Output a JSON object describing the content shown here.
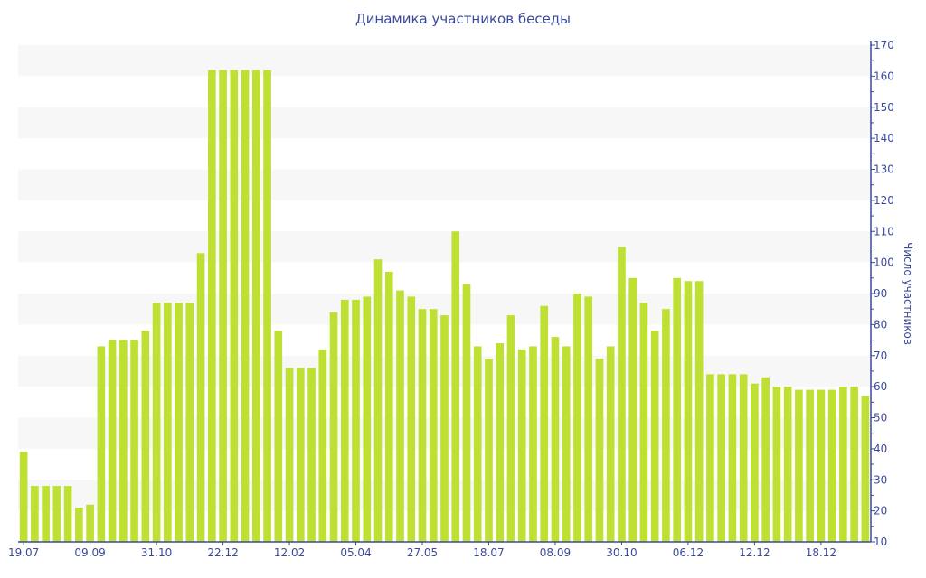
{
  "chart_data": {
    "type": "bar",
    "title": "Динамика участников беседы",
    "xlabel": "",
    "ylabel": "Число участников",
    "ylim": [
      10,
      170
    ],
    "y_ticks": [
      10,
      20,
      30,
      40,
      50,
      60,
      70,
      80,
      90,
      100,
      110,
      120,
      130,
      140,
      150,
      160,
      170
    ],
    "y_axis_position": "right",
    "grid": "alternating horizontal bands",
    "legend": "none",
    "bar_color": "#bde032",
    "axis_color": "#3a4a9a",
    "x_tick_labels": [
      "19.07",
      "09.09",
      "31.10",
      "22.12",
      "12.02",
      "05.04",
      "27.05",
      "18.07",
      "08.09",
      "30.10",
      "06.12",
      "12.12",
      "18.12"
    ],
    "x_tick_every": 6,
    "values": [
      39,
      28,
      28,
      28,
      28,
      21,
      22,
      73,
      75,
      75,
      75,
      78,
      87,
      87,
      87,
      87,
      103,
      162,
      162,
      162,
      162,
      162,
      162,
      78,
      66,
      66,
      66,
      72,
      84,
      88,
      88,
      89,
      101,
      97,
      91,
      89,
      85,
      85,
      83,
      110,
      93,
      73,
      69,
      74,
      83,
      72,
      73,
      86,
      76,
      73,
      90,
      89,
      69,
      73,
      105,
      95,
      87,
      78,
      85,
      95,
      94,
      94,
      64,
      64,
      64,
      64,
      61,
      63,
      60,
      60,
      59,
      59,
      59,
      59,
      60,
      60,
      57
    ]
  }
}
